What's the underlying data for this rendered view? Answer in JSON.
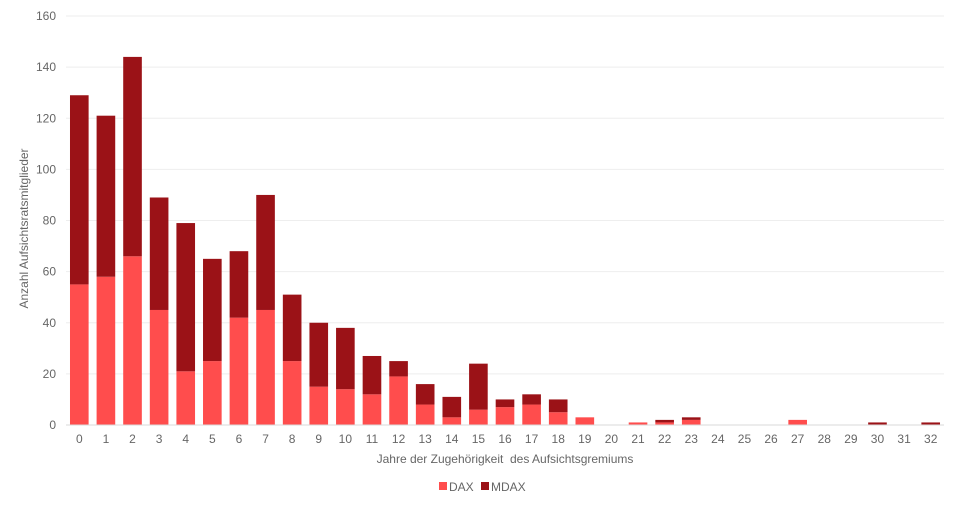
{
  "chart_data": {
    "type": "bar",
    "stacked": true,
    "xlabel": "Jahre der Zugehörigkeit  des Aufsichtsgremiums",
    "ylabel": "Anzahl Aufsichtsratsmitglieder",
    "ylim": [
      0,
      160
    ],
    "yticks": [
      0,
      20,
      40,
      60,
      80,
      100,
      120,
      140,
      160
    ],
    "grid": true,
    "legend_position": "bottom",
    "categories": [
      "0",
      "1",
      "2",
      "3",
      "4",
      "5",
      "6",
      "7",
      "8",
      "9",
      "10",
      "11",
      "12",
      "13",
      "14",
      "15",
      "16",
      "17",
      "18",
      "19",
      "20",
      "21",
      "22",
      "23",
      "24",
      "25",
      "26",
      "27",
      "28",
      "29",
      "30",
      "31",
      "32"
    ],
    "series": [
      {
        "name": "DAX",
        "color": "#ff4d4d",
        "values": [
          55,
          58,
          66,
          45,
          21,
          25,
          42,
          45,
          25,
          15,
          14,
          12,
          19,
          8,
          3,
          6,
          7,
          8,
          5,
          3,
          0,
          1,
          1,
          2,
          0,
          0,
          0,
          2,
          0,
          0,
          0,
          0,
          0
        ]
      },
      {
        "name": "MDAX",
        "color": "#9b1217",
        "values": [
          74,
          63,
          78,
          44,
          58,
          40,
          26,
          45,
          26,
          25,
          24,
          15,
          6,
          8,
          8,
          18,
          3,
          4,
          5,
          0,
          0,
          0,
          1,
          1,
          0,
          0,
          0,
          0,
          0,
          0,
          1,
          0,
          1
        ]
      }
    ]
  }
}
